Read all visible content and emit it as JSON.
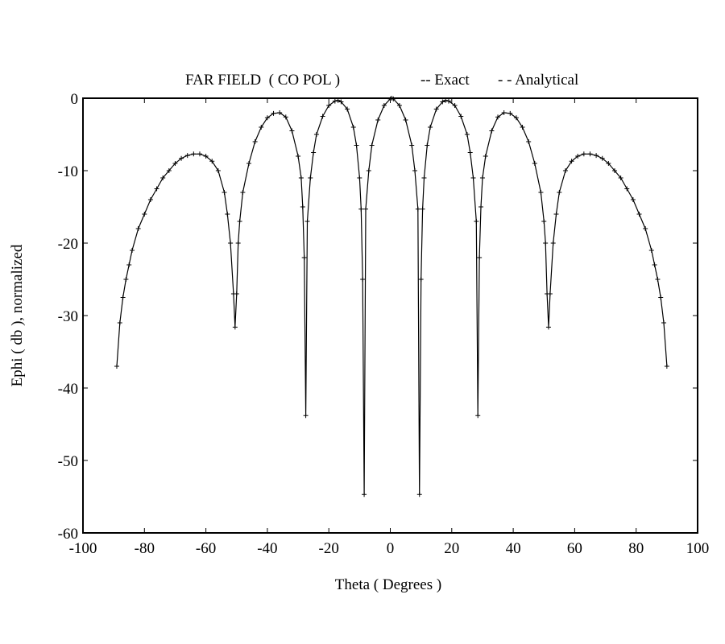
{
  "chart_data": {
    "type": "line",
    "title": "FAR FIELD  ( CO POL )",
    "xlabel": "Theta ( Degrees )",
    "ylabel": "Ephi ( db ), normalized",
    "xlim": [
      -100,
      100
    ],
    "ylim": [
      -60,
      0
    ],
    "xticks": [
      -100,
      -80,
      -60,
      -40,
      -20,
      0,
      20,
      40,
      60,
      80,
      100
    ],
    "yticks": [
      0,
      -10,
      -20,
      -30,
      -40,
      -50,
      -60
    ],
    "grid": false,
    "legend_position": "top-right",
    "legend": [
      {
        "label": "-- Exact"
      },
      {
        "label": "- - Analytical"
      }
    ],
    "series": [
      {
        "marker": "+",
        "color": "#000000",
        "x": [
          -89,
          -88,
          -87,
          -86,
          -85,
          -84,
          -82,
          -80,
          -78,
          -76,
          -74,
          -72,
          -70,
          -68,
          -66,
          -64,
          -62,
          -60,
          -58,
          -56,
          -54,
          -53,
          -52,
          -51,
          -50.5,
          -50,
          -49.5,
          -49,
          -48,
          -46,
          -44,
          -42,
          -40,
          -38,
          -36,
          -34,
          -32,
          -30,
          -29,
          -28.5,
          -28,
          -27.5,
          -27,
          -26,
          -25,
          -24,
          -22,
          -20,
          -18,
          -17,
          -16,
          -14,
          -12,
          -11,
          -10,
          -9.5,
          -9,
          -8.5,
          -8,
          -7,
          -6,
          -4,
          -2,
          0,
          0.5,
          1,
          3,
          5,
          7,
          8,
          9,
          9.5,
          10,
          10.5,
          11,
          12,
          13,
          15,
          17,
          18,
          19,
          21,
          23,
          25,
          26,
          27,
          28,
          28.5,
          29,
          29.5,
          30,
          31,
          33,
          35,
          37,
          39,
          41,
          43,
          45,
          47,
          49,
          50,
          50.5,
          51,
          51.5,
          52,
          53,
          54,
          55,
          57,
          59,
          61,
          63,
          65,
          67,
          69,
          71,
          73,
          75,
          77,
          79,
          81,
          83,
          85,
          86,
          87,
          88,
          89,
          90
        ],
        "y": [
          -37,
          -31,
          -27.5,
          -25,
          -23,
          -21,
          -18,
          -16,
          -14,
          -12.5,
          -11,
          -10,
          -9,
          -8.3,
          -7.9,
          -7.7,
          -7.7,
          -8,
          -8.7,
          -10,
          -13,
          -16,
          -20,
          -27,
          -31.6,
          -27,
          -20,
          -17,
          -13,
          -9,
          -6,
          -4,
          -2.7,
          -2.1,
          -2,
          -2.6,
          -4.5,
          -8,
          -11,
          -15,
          -22,
          -43.8,
          -17,
          -11,
          -7.5,
          -5,
          -2.5,
          -1,
          -0.4,
          -0.3,
          -0.5,
          -1.5,
          -4,
          -6.5,
          -11,
          -15.3,
          -25,
          -54.7,
          -15.3,
          -10,
          -6.5,
          -3,
          -1,
          -0.1,
          0,
          -0.1,
          -1,
          -3,
          -6.5,
          -10,
          -15.3,
          -54.7,
          -25,
          -15.3,
          -11,
          -6.5,
          -4,
          -1.5,
          -0.5,
          -0.3,
          -0.4,
          -1,
          -2.5,
          -5,
          -7.5,
          -11,
          -17,
          -43.8,
          -22,
          -15,
          -11,
          -8,
          -4.5,
          -2.6,
          -2,
          -2.1,
          -2.7,
          -4,
          -6,
          -9,
          -13,
          -17,
          -20,
          -27,
          -31.6,
          -27,
          -20,
          -16,
          -13,
          -10,
          -8.7,
          -8,
          -7.7,
          -7.7,
          -7.9,
          -8.3,
          -9,
          -10,
          -11,
          -12.5,
          -14,
          -16,
          -18,
          -21,
          -23,
          -25,
          -27.5,
          -31,
          -37
        ]
      }
    ]
  }
}
